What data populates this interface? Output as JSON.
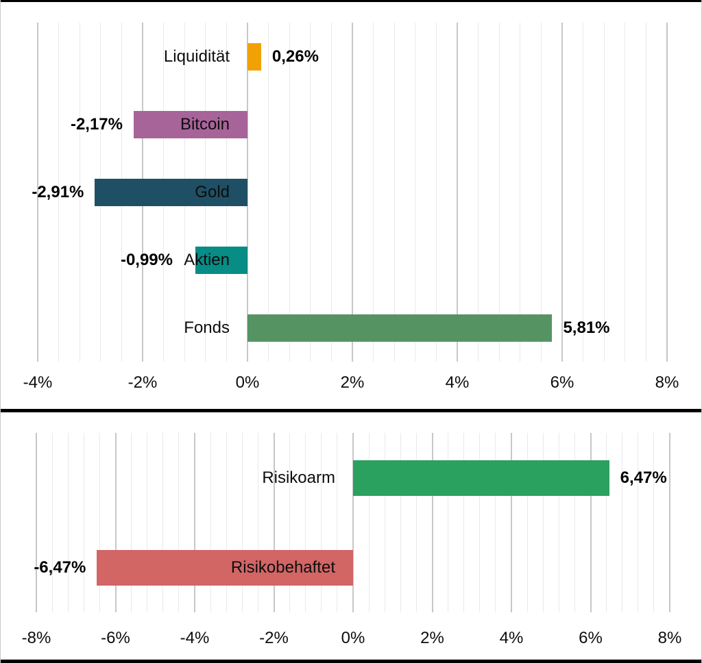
{
  "page": {
    "background": "#ffffff",
    "frame_color": "#000000",
    "edge_line_color": "#c9c9c9"
  },
  "style": {
    "grid_major_color": "#c7c7c7",
    "grid_minor_color": "#e9e9e9",
    "category_text_color": "#0d0d0d",
    "value_text_color": "#000000"
  },
  "chart_data": [
    {
      "type": "bar",
      "orientation": "horizontal",
      "title": "",
      "categories": [
        "Liquidität",
        "Bitcoin",
        "Gold",
        "Aktien",
        "Fonds"
      ],
      "values": [
        0.26,
        -2.17,
        -2.91,
        -0.99,
        5.81
      ],
      "value_labels": [
        "0,26%",
        "-2,17%",
        "-2,91%",
        "-0,99%",
        "5,81%"
      ],
      "colors": [
        "#F2A104",
        "#A76499",
        "#1F4F64",
        "#088C86",
        "#559462"
      ],
      "xlim": [
        -4,
        8
      ],
      "tick_step_major": 2,
      "tick_step_minor": 0.4,
      "tick_labels": [
        "-4%",
        "-2%",
        "0%",
        "2%",
        "4%",
        "6%",
        "8%"
      ],
      "grid": "vertical",
      "legend": "none"
    },
    {
      "type": "bar",
      "orientation": "horizontal",
      "title": "",
      "categories": [
        "Risikoarm",
        "Risikobehaftet"
      ],
      "values": [
        6.47,
        -6.47
      ],
      "value_labels": [
        "6,47%",
        "-6,47%"
      ],
      "colors": [
        "#2AA15E",
        "#D16665"
      ],
      "xlim": [
        -8,
        8
      ],
      "tick_step_major": 2,
      "tick_step_minor": 0.4,
      "tick_labels": [
        "-8%",
        "-6%",
        "-4%",
        "-2%",
        "0%",
        "2%",
        "4%",
        "6%",
        "8%"
      ],
      "grid": "vertical",
      "legend": "none"
    }
  ]
}
